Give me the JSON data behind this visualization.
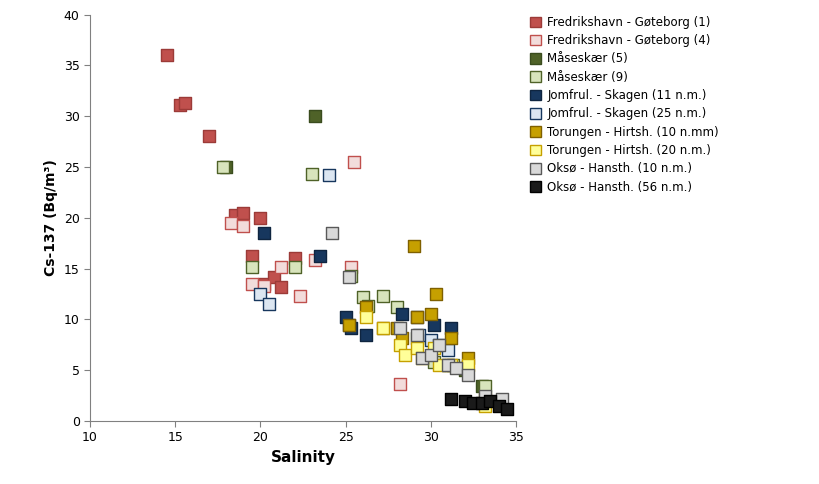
{
  "series": [
    {
      "label": "Fredrikshavn - Gøteborg (1)",
      "facecolor": "#C0504D",
      "edgecolor": "#9C3B38",
      "data": [
        [
          14.5,
          36
        ],
        [
          15.3,
          31.1
        ],
        [
          15.6,
          31.3
        ],
        [
          17.0,
          28.0
        ],
        [
          18.5,
          20.3
        ],
        [
          19.0,
          20.5
        ],
        [
          19.5,
          16.2
        ],
        [
          20.0,
          20.0
        ],
        [
          20.2,
          13.5
        ],
        [
          20.8,
          14.2
        ],
        [
          21.2,
          13.2
        ],
        [
          22.0,
          16.0
        ]
      ]
    },
    {
      "label": "Fredrikshavn - Gøteborg (4)",
      "facecolor": "#F2DCDB",
      "edgecolor": "#C0504D",
      "data": [
        [
          18.3,
          19.5
        ],
        [
          19.0,
          19.2
        ],
        [
          19.5,
          13.5
        ],
        [
          20.2,
          13.3
        ],
        [
          21.2,
          15.2
        ],
        [
          22.3,
          12.3
        ],
        [
          23.2,
          15.8
        ],
        [
          25.3,
          15.2
        ],
        [
          25.5,
          25.5
        ],
        [
          28.2,
          3.6
        ]
      ]
    },
    {
      "label": "Måseskær (5)",
      "facecolor": "#4F6228",
      "edgecolor": "#3A4C1E",
      "data": [
        [
          18.0,
          25.0
        ],
        [
          23.2,
          30.0
        ],
        [
          31.0,
          5.5
        ],
        [
          32.0,
          5.0
        ],
        [
          33.0,
          3.5
        ]
      ]
    },
    {
      "label": "Måseskær (9)",
      "facecolor": "#D8E4BC",
      "edgecolor": "#4F6228",
      "data": [
        [
          17.8,
          25.0
        ],
        [
          19.5,
          15.2
        ],
        [
          22.0,
          15.2
        ],
        [
          23.0,
          24.3
        ],
        [
          25.3,
          14.3
        ],
        [
          26.0,
          12.2
        ],
        [
          26.3,
          11.3
        ],
        [
          27.2,
          12.3
        ],
        [
          28.0,
          11.2
        ],
        [
          29.2,
          8.2
        ],
        [
          30.2,
          5.8
        ],
        [
          31.3,
          5.5
        ],
        [
          32.0,
          5.2
        ],
        [
          33.2,
          3.5
        ]
      ]
    },
    {
      "label": "Jomfrul. - Skagen (11 n.m.)",
      "facecolor": "#17375E",
      "edgecolor": "#0F2540",
      "data": [
        [
          20.2,
          18.5
        ],
        [
          23.5,
          16.2
        ],
        [
          25.0,
          10.2
        ],
        [
          25.3,
          9.2
        ],
        [
          26.2,
          8.5
        ],
        [
          28.3,
          10.5
        ],
        [
          29.2,
          10.2
        ],
        [
          30.2,
          9.5
        ],
        [
          31.2,
          9.2
        ]
      ]
    },
    {
      "label": "Jomfrul. - Skagen (25 n.m.)",
      "facecolor": "#DCE6F1",
      "edgecolor": "#17375E",
      "data": [
        [
          20.0,
          12.5
        ],
        [
          20.5,
          11.5
        ],
        [
          24.0,
          24.2
        ],
        [
          25.2,
          9.5
        ],
        [
          29.3,
          8.5
        ],
        [
          30.0,
          8.0
        ],
        [
          30.5,
          7.5
        ],
        [
          31.0,
          7.0
        ]
      ]
    },
    {
      "label": "Torungen - Hirtsh. (10 n.mm)",
      "facecolor": "#C6A000",
      "edgecolor": "#7F6000",
      "data": [
        [
          25.2,
          9.5
        ],
        [
          26.2,
          11.2
        ],
        [
          27.2,
          9.2
        ],
        [
          28.0,
          9.2
        ],
        [
          28.3,
          8.2
        ],
        [
          29.0,
          17.2
        ],
        [
          29.2,
          10.2
        ],
        [
          30.0,
          10.5
        ],
        [
          30.3,
          12.5
        ],
        [
          31.2,
          8.2
        ],
        [
          32.2,
          6.2
        ],
        [
          33.2,
          2.2
        ]
      ]
    },
    {
      "label": "Torungen - Hirtsh. (20 n.m.)",
      "facecolor": "#FFFF99",
      "edgecolor": "#C6A000",
      "data": [
        [
          26.2,
          10.2
        ],
        [
          27.2,
          9.2
        ],
        [
          28.2,
          7.5
        ],
        [
          28.5,
          6.5
        ],
        [
          29.2,
          7.2
        ],
        [
          29.5,
          6.2
        ],
        [
          30.2,
          7.2
        ],
        [
          30.5,
          5.5
        ],
        [
          31.2,
          5.5
        ],
        [
          32.2,
          5.5
        ],
        [
          33.2,
          1.5
        ]
      ]
    },
    {
      "label": "Oksø - Hansth. (10 n.m.)",
      "facecolor": "#D9D9D9",
      "edgecolor": "#595959",
      "data": [
        [
          24.2,
          18.5
        ],
        [
          25.2,
          14.2
        ],
        [
          28.2,
          9.2
        ],
        [
          29.2,
          8.5
        ],
        [
          29.5,
          6.2
        ],
        [
          30.0,
          6.5
        ],
        [
          30.5,
          7.5
        ],
        [
          31.0,
          5.5
        ],
        [
          31.5,
          5.2
        ],
        [
          32.2,
          4.5
        ],
        [
          33.2,
          2.5
        ],
        [
          34.2,
          2.2
        ]
      ]
    },
    {
      "label": "Oksø - Hansth. (56 n.m.)",
      "facecolor": "#1A1A1A",
      "edgecolor": "#000000",
      "data": [
        [
          31.2,
          2.2
        ],
        [
          32.0,
          2.0
        ],
        [
          32.5,
          1.8
        ],
        [
          33.0,
          1.8
        ],
        [
          33.5,
          2.0
        ],
        [
          34.0,
          1.5
        ],
        [
          34.5,
          1.2
        ]
      ]
    }
  ],
  "xlabel": "Salinity",
  "ylabel": "Cs-137 (Bq/m³)",
  "xlim": [
    10,
    35
  ],
  "ylim": [
    0,
    40
  ],
  "xticks": [
    10,
    15,
    20,
    25,
    30,
    35
  ],
  "yticks": [
    0,
    5,
    10,
    15,
    20,
    25,
    30,
    35,
    40
  ],
  "marker_size": 80,
  "background": "#FFFFFF",
  "figsize": [
    8.19,
    4.84
  ],
  "dpi": 100
}
